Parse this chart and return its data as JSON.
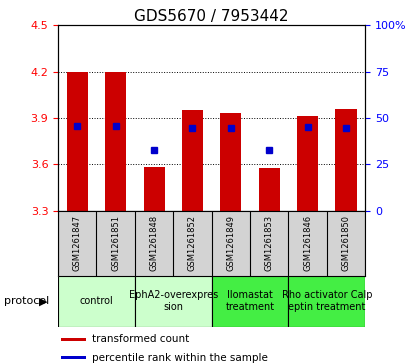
{
  "title": "GDS5670 / 7953442",
  "samples": [
    "GSM1261847",
    "GSM1261851",
    "GSM1261848",
    "GSM1261852",
    "GSM1261849",
    "GSM1261853",
    "GSM1261846",
    "GSM1261850"
  ],
  "bar_tops": [
    4.2,
    4.2,
    3.585,
    3.95,
    3.93,
    3.575,
    3.91,
    3.96
  ],
  "bar_bottom": 3.3,
  "blue_dots": [
    3.845,
    3.845,
    3.695,
    3.835,
    3.835,
    3.695,
    3.84,
    3.835
  ],
  "ylim_left": [
    3.3,
    4.5
  ],
  "ylim_right": [
    0,
    100
  ],
  "yticks_left": [
    3.3,
    3.6,
    3.9,
    4.2,
    4.5
  ],
  "yticks_right": [
    0,
    25,
    50,
    75,
    100
  ],
  "bar_color": "#cc0000",
  "dot_color": "#0000cc",
  "protocols": [
    {
      "label": "control",
      "samples": [
        0,
        1
      ],
      "color": "#ccffcc"
    },
    {
      "label": "EphA2-overexpres\nsion",
      "samples": [
        2,
        3
      ],
      "color": "#ccffcc"
    },
    {
      "label": "Ilomastat\ntreatment",
      "samples": [
        4,
        5
      ],
      "color": "#44ee44"
    },
    {
      "label": "Rho activator Calp\neptin treatment",
      "samples": [
        6,
        7
      ],
      "color": "#44ee44"
    }
  ],
  "legend_items": [
    {
      "label": "transformed count",
      "color": "#cc0000"
    },
    {
      "label": "percentile rank within the sample",
      "color": "#0000cc"
    }
  ],
  "protocol_label": "protocol",
  "bar_width": 0.55,
  "title_fontsize": 11,
  "tick_fontsize": 8,
  "sample_fontsize": 6,
  "proto_fontsize": 7,
  "legend_fontsize": 7.5
}
